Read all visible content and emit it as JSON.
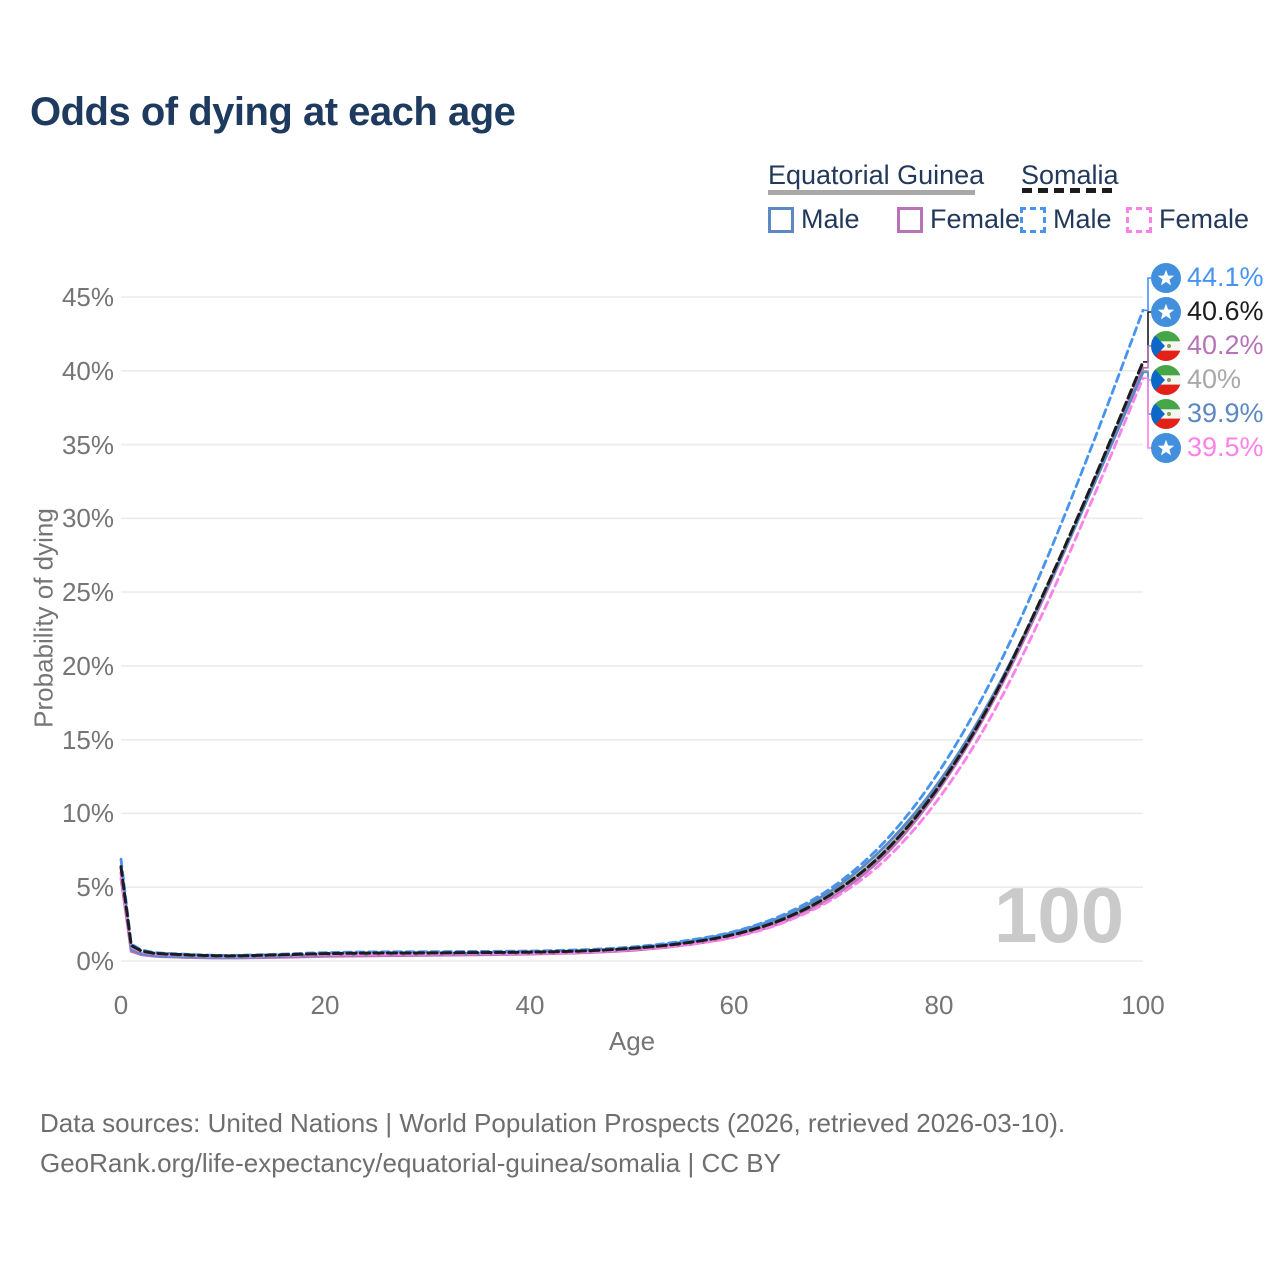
{
  "title": "Odds of dying at each age",
  "legend": {
    "groups": [
      {
        "label": "Equatorial Guinea",
        "key": "equatorial_guinea",
        "line_style": "solid",
        "line_color": "#a8a8a8"
      },
      {
        "label": "Somalia",
        "key": "somalia",
        "line_style": "dashed",
        "line_color": "#1c1c1c"
      }
    ],
    "items": [
      {
        "label": "Male",
        "group": "Equatorial Guinea",
        "swatch_color": "#5c89c2",
        "swatch_style": "solid"
      },
      {
        "label": "Female",
        "group": "Equatorial Guinea",
        "swatch_color": "#b873b8",
        "swatch_style": "solid"
      },
      {
        "label": "Male",
        "group": "Somalia",
        "swatch_color": "#4694f0",
        "swatch_style": "dashed"
      },
      {
        "label": "Female",
        "group": "Somalia",
        "swatch_color": "#fc82e8",
        "swatch_style": "dashed"
      }
    ]
  },
  "y_axis": {
    "label": "Probability of dying",
    "tick_values": [
      0,
      5,
      10,
      15,
      20,
      25,
      30,
      35,
      40,
      45
    ],
    "tick_suffix": "%",
    "range": [
      0,
      45
    ]
  },
  "x_axis": {
    "label": "Age",
    "tick_values": [
      0,
      20,
      40,
      60,
      80,
      100
    ],
    "range": [
      0,
      100
    ]
  },
  "watermark": "100",
  "end_labels": [
    {
      "series_key": "somalia_male",
      "value": "44.1%",
      "flag": "somalia",
      "color": "#4694f0"
    },
    {
      "series_key": "somalia_total",
      "value": "40.6%",
      "flag": "somalia",
      "color": "#1c1c1c"
    },
    {
      "series_key": "equatorial_guinea_female",
      "value": "40.2%",
      "flag": "equatorial-guinea",
      "color": "#b873b8"
    },
    {
      "series_key": "equatorial_guinea_total",
      "value": "40%",
      "flag": "equatorial-guinea",
      "color": "#a8a8a8"
    },
    {
      "series_key": "equatorial_guinea_male",
      "value": "39.9%",
      "flag": "equatorial-guinea",
      "color": "#5c89c2"
    },
    {
      "series_key": "somalia_female",
      "value": "39.5%",
      "flag": "somalia",
      "color": "#fc82e8"
    }
  ],
  "footer": {
    "line1": "Data sources: United Nations | World Population Prospects (2026, retrieved 2026-03-10).",
    "line2": "GeoRank.org/life-expectancy/equatorial-guinea/somalia | CC BY"
  },
  "chart_data": {
    "type": "line",
    "title": "Odds of dying at each age",
    "xlabel": "Age",
    "ylabel": "Probability of dying",
    "unit": "%",
    "xlim": [
      0,
      100
    ],
    "ylim": [
      0,
      45
    ],
    "grid": "horizontal",
    "legend_position": "top-right",
    "x": [
      0,
      1,
      2,
      3,
      5,
      10,
      15,
      20,
      25,
      30,
      35,
      40,
      45,
      50,
      55,
      60,
      65,
      70,
      75,
      80,
      85,
      90,
      95,
      100
    ],
    "series": [
      {
        "key": "equatorial_guinea_total",
        "name": "Equatorial Guinea",
        "country": "Equatorial Guinea",
        "sex": "Both",
        "color": "#a8a8a8",
        "dash": null,
        "width": 3,
        "values": [
          6.0,
          0.73,
          0.46,
          0.37,
          0.3,
          0.22,
          0.27,
          0.37,
          0.42,
          0.45,
          0.48,
          0.52,
          0.61,
          0.8,
          1.17,
          1.8,
          2.9,
          4.75,
          7.65,
          11.85,
          17.4,
          24.3,
          32.0,
          40.0
        ]
      },
      {
        "key": "equatorial_guinea_female",
        "name": "Equatorial Guinea Female",
        "country": "Equatorial Guinea",
        "sex": "Female",
        "color": "#b873b8",
        "dash": null,
        "width": 2.8,
        "values": [
          5.6,
          0.66,
          0.42,
          0.34,
          0.27,
          0.2,
          0.24,
          0.31,
          0.35,
          0.38,
          0.42,
          0.47,
          0.55,
          0.72,
          1.06,
          1.65,
          2.7,
          4.5,
          7.35,
          11.6,
          17.2,
          24.2,
          32.1,
          40.2
        ]
      },
      {
        "key": "equatorial_guinea_male",
        "name": "Equatorial Guinea Male",
        "country": "Equatorial Guinea",
        "sex": "Male",
        "color": "#5c89c2",
        "dash": null,
        "width": 2.8,
        "values": [
          6.3,
          0.8,
          0.5,
          0.4,
          0.32,
          0.24,
          0.3,
          0.42,
          0.48,
          0.5,
          0.53,
          0.57,
          0.67,
          0.88,
          1.28,
          1.95,
          3.1,
          5.0,
          7.95,
          12.1,
          17.6,
          24.4,
          32.0,
          39.9
        ]
      },
      {
        "key": "somalia_female",
        "name": "Somalia Female",
        "country": "Somalia",
        "sex": "Female",
        "color": "#fc82e8",
        "dash": "7.5 5",
        "width": 2.8,
        "values": [
          5.9,
          0.95,
          0.62,
          0.5,
          0.42,
          0.32,
          0.36,
          0.43,
          0.46,
          0.47,
          0.49,
          0.52,
          0.6,
          0.77,
          1.07,
          1.62,
          2.65,
          4.35,
          7.0,
          11.0,
          16.4,
          23.3,
          31.2,
          39.5
        ]
      },
      {
        "key": "somalia_male",
        "name": "Somalia Male",
        "country": "Somalia",
        "sex": "Male",
        "color": "#4694f0",
        "dash": "7.5 5",
        "width": 2.8,
        "values": [
          6.9,
          1.15,
          0.75,
          0.6,
          0.5,
          0.38,
          0.45,
          0.57,
          0.62,
          0.63,
          0.65,
          0.68,
          0.76,
          0.95,
          1.35,
          2.0,
          3.2,
          5.2,
          8.3,
          12.8,
          18.8,
          26.3,
          34.9,
          44.1
        ]
      },
      {
        "key": "somalia_total",
        "name": "Somalia",
        "country": "Somalia",
        "sex": "Both",
        "color": "#1c1c1c",
        "dash": "9 4.5",
        "width": 3,
        "values": [
          6.4,
          1.05,
          0.68,
          0.55,
          0.46,
          0.35,
          0.41,
          0.5,
          0.54,
          0.55,
          0.57,
          0.6,
          0.68,
          0.86,
          1.2,
          1.8,
          2.9,
          4.75,
          7.6,
          11.8,
          17.4,
          24.5,
          32.3,
          40.6
        ]
      }
    ]
  }
}
